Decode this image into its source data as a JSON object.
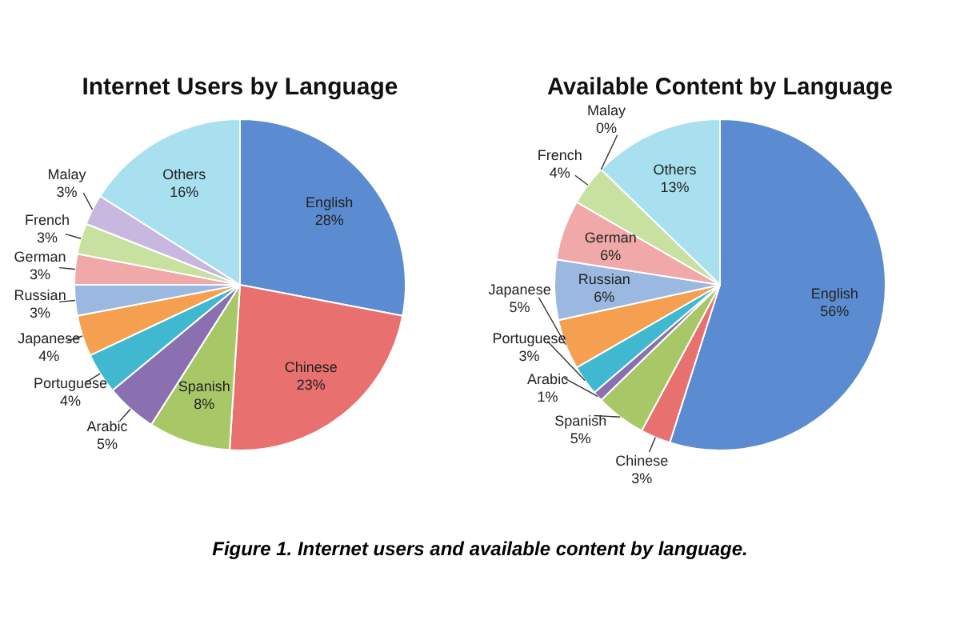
{
  "chart_data": [
    {
      "type": "pie",
      "title": "Internet Users by Language",
      "categories": [
        "English",
        "Chinese",
        "Spanish",
        "Arabic",
        "Portuguese",
        "Japanese",
        "Russian",
        "German",
        "French",
        "Malay",
        "Others"
      ],
      "values": [
        28,
        23,
        8,
        5,
        4,
        4,
        3,
        3,
        3,
        3,
        16
      ],
      "value_labels": [
        "28%",
        "23%",
        "8%",
        "5%",
        "4%",
        "4%",
        "3%",
        "3%",
        "3%",
        "3%",
        "16%"
      ],
      "colors": [
        "#5b8bd0",
        "#e8706e",
        "#a8c868",
        "#8a70b0",
        "#40b8d0",
        "#f4a050",
        "#9ab8e0",
        "#f0a8a8",
        "#c8e0a0",
        "#c8b8e0",
        "#a8e0f0"
      ],
      "legend": false
    },
    {
      "type": "pie",
      "title": "Available Content by Language",
      "categories": [
        "English",
        "Chinese",
        "Spanish",
        "Arabic",
        "Portuguese",
        "Japanese",
        "Russian",
        "German",
        "French",
        "Malay",
        "Others"
      ],
      "values": [
        56,
        3,
        5,
        1,
        3,
        5,
        6,
        6,
        4,
        0,
        13
      ],
      "value_labels": [
        "56%",
        "3%",
        "5%",
        "1%",
        "3%",
        "5%",
        "6%",
        "6%",
        "4%",
        "0%",
        "13%"
      ],
      "colors": [
        "#5b8bd0",
        "#e8706e",
        "#a8c868",
        "#8a70b0",
        "#40b8d0",
        "#f4a050",
        "#9ab8e0",
        "#f0a8a8",
        "#c8e0a0",
        "#c8b8e0",
        "#a8e0f0"
      ],
      "legend": false,
      "annotations": [
        "Figure 1. Internet users and available content by language."
      ]
    }
  ]
}
